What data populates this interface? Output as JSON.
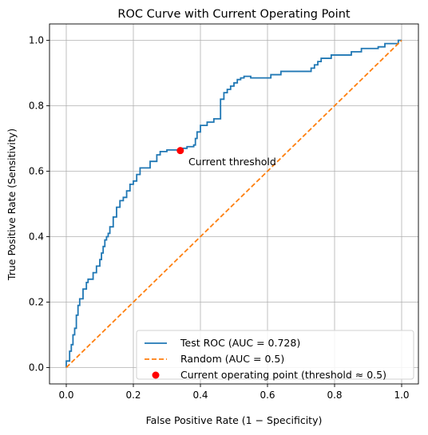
{
  "chart_data": {
    "type": "line",
    "title": "ROC Curve with Current Operating Point",
    "xlabel": "False Positive Rate (1 − Specificity)",
    "ylabel": "True Positive Rate (Sensitivity)",
    "xlim": [
      -0.05,
      1.05
    ],
    "ylim": [
      -0.05,
      1.05
    ],
    "xticks": [
      0.0,
      0.2,
      0.4,
      0.6,
      0.8,
      1.0
    ],
    "yticks": [
      0.0,
      0.2,
      0.4,
      0.6,
      0.8,
      1.0
    ],
    "xtick_labels": [
      "0.0",
      "0.2",
      "0.4",
      "0.6",
      "0.8",
      "1.0"
    ],
    "ytick_labels": [
      "0.0",
      "0.2",
      "0.4",
      "0.6",
      "0.8",
      "1.0"
    ],
    "grid": true,
    "legend_position": "lower-right",
    "series": [
      {
        "name": "Test ROC (AUC = 0.728)",
        "style": "solid",
        "color": "#1f77b4",
        "x": [
          0.0,
          0.0,
          0.01,
          0.01,
          0.015,
          0.015,
          0.02,
          0.02,
          0.025,
          0.025,
          0.03,
          0.03,
          0.035,
          0.035,
          0.04,
          0.04,
          0.05,
          0.05,
          0.06,
          0.06,
          0.065,
          0.065,
          0.07,
          0.07,
          0.08,
          0.08,
          0.09,
          0.09,
          0.1,
          0.1,
          0.105,
          0.105,
          0.11,
          0.11,
          0.115,
          0.115,
          0.12,
          0.12,
          0.125,
          0.125,
          0.13,
          0.13,
          0.14,
          0.14,
          0.15,
          0.15,
          0.16,
          0.16,
          0.17,
          0.17,
          0.18,
          0.18,
          0.19,
          0.19,
          0.2,
          0.2,
          0.21,
          0.21,
          0.22,
          0.22,
          0.25,
          0.25,
          0.27,
          0.27,
          0.28,
          0.28,
          0.3,
          0.3,
          0.34,
          0.34,
          0.36,
          0.36,
          0.38,
          0.38,
          0.385,
          0.385,
          0.39,
          0.39,
          0.4,
          0.4,
          0.42,
          0.42,
          0.44,
          0.44,
          0.46,
          0.46,
          0.47,
          0.47,
          0.48,
          0.48,
          0.49,
          0.49,
          0.5,
          0.5,
          0.51,
          0.51,
          0.52,
          0.52,
          0.53,
          0.53,
          0.54,
          0.54,
          0.55,
          0.55,
          0.61,
          0.61,
          0.64,
          0.64,
          0.73,
          0.73,
          0.74,
          0.74,
          0.75,
          0.75,
          0.76,
          0.76,
          0.79,
          0.79,
          0.85,
          0.85,
          0.88,
          0.88,
          0.93,
          0.93,
          0.95,
          0.95,
          0.99,
          0.99,
          1.0
        ],
        "y": [
          0.0,
          0.02,
          0.02,
          0.05,
          0.05,
          0.07,
          0.07,
          0.1,
          0.1,
          0.12,
          0.12,
          0.16,
          0.16,
          0.19,
          0.19,
          0.21,
          0.21,
          0.24,
          0.24,
          0.26,
          0.26,
          0.27,
          0.27,
          0.27,
          0.27,
          0.29,
          0.29,
          0.31,
          0.31,
          0.33,
          0.33,
          0.35,
          0.35,
          0.37,
          0.37,
          0.39,
          0.39,
          0.4,
          0.4,
          0.41,
          0.41,
          0.43,
          0.43,
          0.46,
          0.46,
          0.49,
          0.49,
          0.51,
          0.51,
          0.52,
          0.52,
          0.54,
          0.54,
          0.56,
          0.56,
          0.57,
          0.57,
          0.59,
          0.59,
          0.61,
          0.61,
          0.63,
          0.63,
          0.65,
          0.65,
          0.66,
          0.66,
          0.665,
          0.665,
          0.67,
          0.67,
          0.675,
          0.675,
          0.68,
          0.68,
          0.7,
          0.7,
          0.72,
          0.72,
          0.74,
          0.74,
          0.75,
          0.75,
          0.76,
          0.76,
          0.82,
          0.82,
          0.84,
          0.84,
          0.85,
          0.85,
          0.86,
          0.86,
          0.87,
          0.87,
          0.88,
          0.88,
          0.885,
          0.885,
          0.89,
          0.89,
          0.89,
          0.89,
          0.885,
          0.885,
          0.895,
          0.895,
          0.905,
          0.905,
          0.915,
          0.915,
          0.925,
          0.925,
          0.935,
          0.935,
          0.945,
          0.945,
          0.955,
          0.955,
          0.965,
          0.965,
          0.975,
          0.975,
          0.98,
          0.98,
          0.99,
          0.99,
          1.0,
          1.0
        ]
      },
      {
        "name": "Random (AUC = 0.5)",
        "style": "dashed",
        "color": "#ff7f0e",
        "x": [
          0.0,
          1.0
        ],
        "y": [
          0.0,
          1.0
        ]
      }
    ],
    "points": [
      {
        "name": "Current operating point (threshold ≈ 0.5)",
        "color": "#ff0000",
        "x": 0.34,
        "y": 0.663
      }
    ],
    "annotations": [
      {
        "text": "Current threshold",
        "x": 0.36,
        "y": 0.63
      }
    ]
  }
}
